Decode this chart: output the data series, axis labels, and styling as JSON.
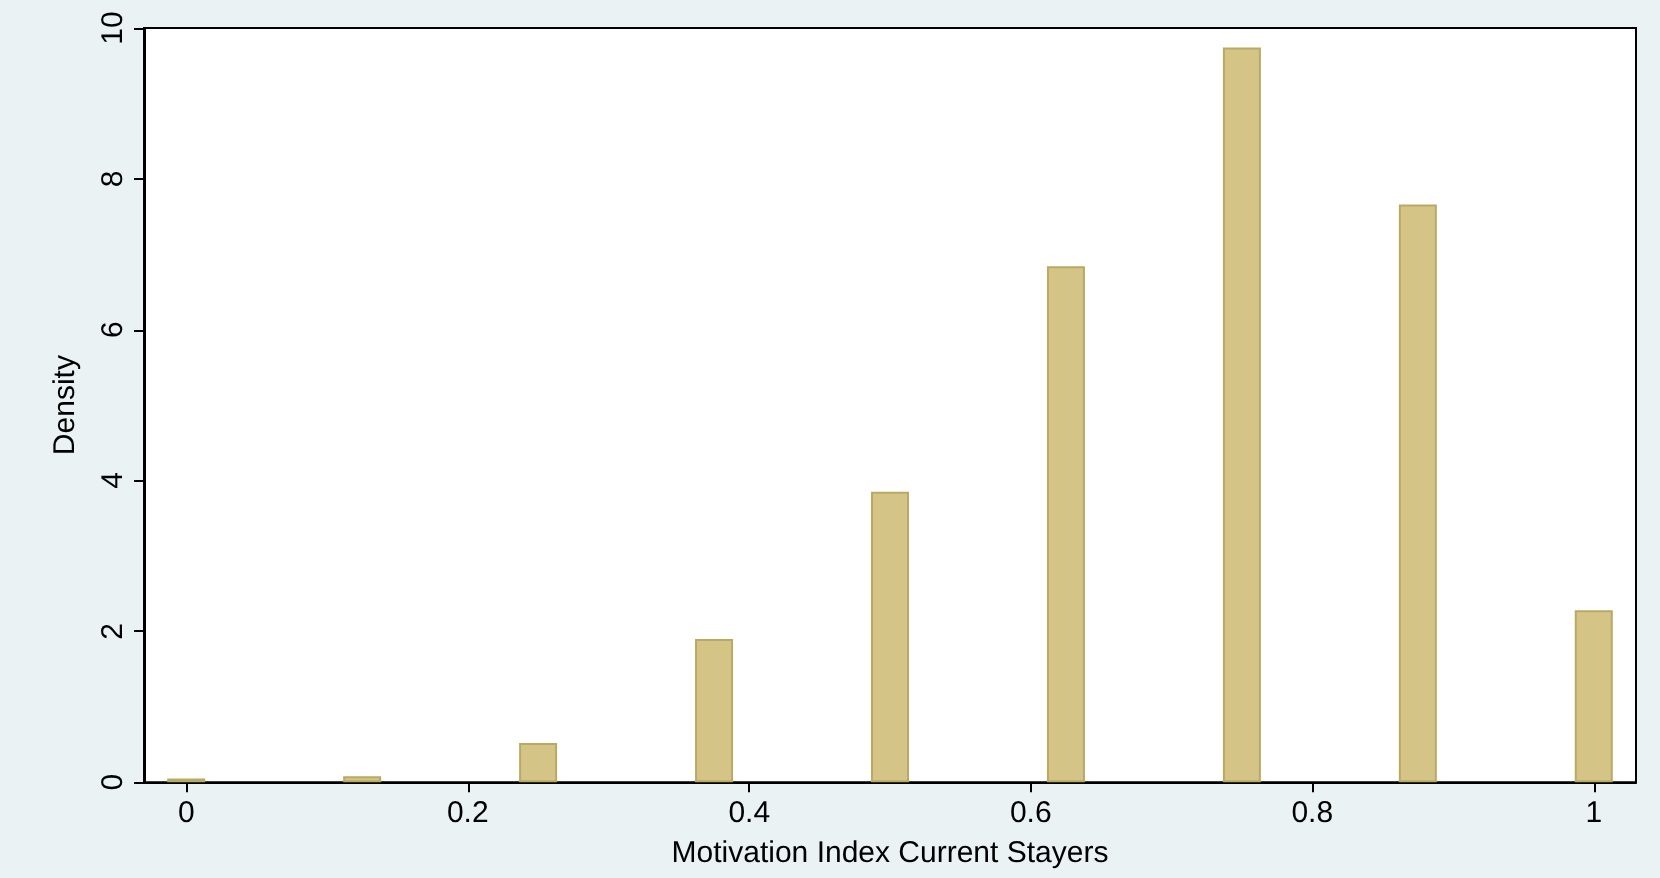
{
  "chart_data": {
    "type": "bar",
    "xlabel": "Motivation Index Current Stayers",
    "ylabel": "Density",
    "x": [
      0,
      0.125,
      0.25,
      0.375,
      0.5,
      0.625,
      0.75,
      0.875,
      1
    ],
    "values": [
      0.05,
      0.08,
      0.52,
      1.9,
      3.85,
      6.84,
      9.74,
      7.66,
      2.28
    ],
    "color": "#d4c587",
    "xlim": [
      -0.03,
      1.03
    ],
    "xticks": [
      0,
      0.2,
      0.4,
      0.6,
      0.8,
      1
    ],
    "ylim": [
      0,
      10
    ],
    "yticks": [
      0,
      2,
      4,
      6,
      8,
      10
    ],
    "grid": false
  }
}
